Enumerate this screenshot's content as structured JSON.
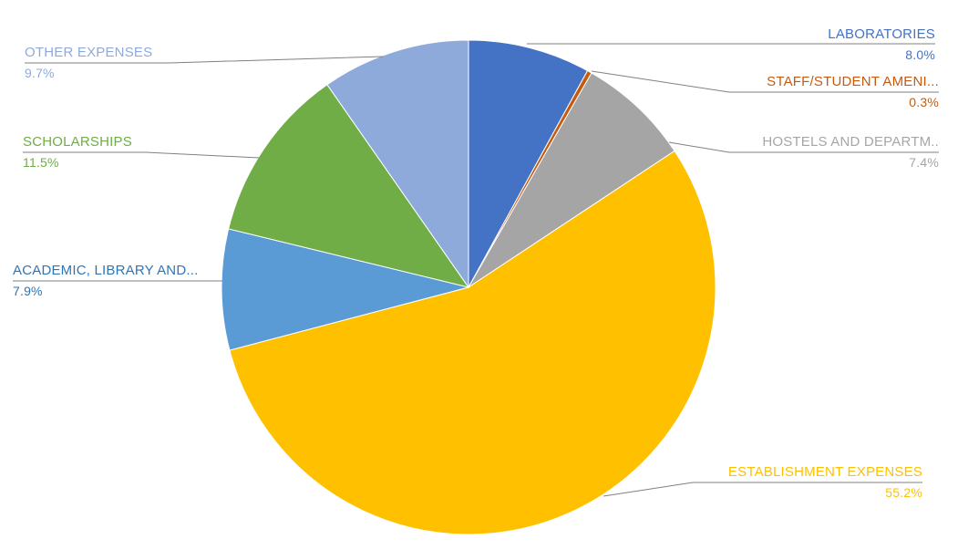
{
  "chart_data": {
    "type": "pie",
    "title": "",
    "start_angle_deg": 0,
    "direction": "clockwise",
    "legend": "none",
    "labels_show": [
      "category_name",
      "percentage"
    ],
    "label_layout": "outside-end-with-leader-lines",
    "slices": [
      {
        "label": "LABORATORIES",
        "value": 8.0,
        "display_pct": "8.0%",
        "color": "#4472C4",
        "label_color": "#4472C4"
      },
      {
        "label": "STAFF/STUDENT AMENI...",
        "value": 0.3,
        "display_pct": "0.3%",
        "color": "#C55A11",
        "label_color": "#C55A11"
      },
      {
        "label": "HOSTELS AND DEPARTM..",
        "value": 7.4,
        "display_pct": "7.4%",
        "color": "#A5A5A5",
        "label_color": "#A6A6A6"
      },
      {
        "label": "ESTABLISHMENT EXPENSES",
        "value": 55.2,
        "display_pct": "55.2%",
        "color": "#FFC000",
        "label_color": "#FFC000"
      },
      {
        "label": "ACADEMIC, LIBRARY AND...",
        "value": 7.9,
        "display_pct": "7.9%",
        "color": "#5B9BD5",
        "label_color": "#2E75B6"
      },
      {
        "label": "SCHOLARSHIPS",
        "value": 11.5,
        "display_pct": "11.5%",
        "color": "#70AD47",
        "label_color": "#70AD47"
      },
      {
        "label": "OTHER EXPENSES",
        "value": 9.7,
        "display_pct": "9.7%",
        "color": "#8EAADB",
        "label_color": "#8EAADB"
      }
    ]
  },
  "colors": {
    "background": "#FFFFFF",
    "leader_line": "#808080",
    "slice_border": "#FFFFFF"
  }
}
